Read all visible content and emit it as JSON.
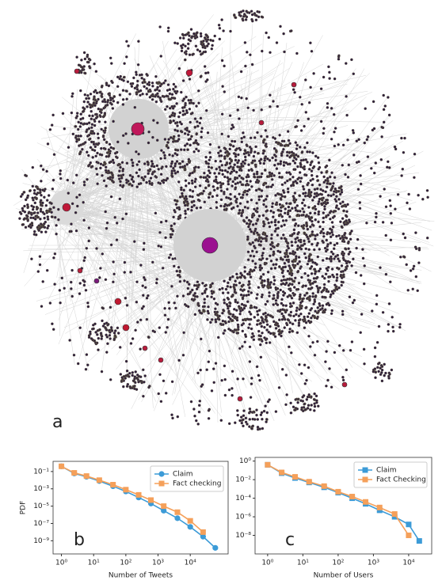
{
  "network": {
    "label": "a"
  },
  "chart_data": [
    {
      "type": "line",
      "label": "b",
      "x_label": "Number of Tweets",
      "y_label": "PDF",
      "log_x": true,
      "log_y": true,
      "grid": false,
      "legend": "upper right",
      "xlim": [
        0.55,
        150000
      ],
      "ylim": [
        3e-11,
        1.5
      ],
      "xticks": [
        {
          "value": 1,
          "label": "10⁰"
        },
        {
          "value": 10,
          "label": "10¹"
        },
        {
          "value": 100,
          "label": "10²"
        },
        {
          "value": 1000,
          "label": "10³"
        },
        {
          "value": 10000,
          "label": "10⁴"
        }
      ],
      "yticks": [
        {
          "value": 0.1,
          "label": "10⁻¹"
        },
        {
          "value": 0.001,
          "label": "10⁻³"
        },
        {
          "value": 1e-05,
          "label": "10⁻⁵"
        },
        {
          "value": 1e-07,
          "label": "10⁻⁷"
        },
        {
          "value": 1e-09,
          "label": "10⁻⁹"
        }
      ],
      "series": [
        {
          "name": "Claim",
          "color": "#3c9bd7",
          "marker": "circle",
          "x": [
            1,
            2.5,
            6,
            15,
            40,
            100,
            250,
            600,
            1500,
            4000,
            10000,
            25000,
            60000
          ],
          "values": [
            0.4,
            0.06,
            0.025,
            0.008,
            0.002,
            0.0005,
            0.0001,
            2e-05,
            3e-06,
            4e-07,
            4e-08,
            3e-09,
            1.5e-10
          ]
        },
        {
          "name": "Fact checking",
          "color": "#f5a05a",
          "marker": "square",
          "x": [
            1,
            2.5,
            6,
            15,
            40,
            100,
            250,
            600,
            1500,
            4000,
            10000,
            25000
          ],
          "values": [
            0.4,
            0.07,
            0.03,
            0.01,
            0.003,
            0.0008,
            0.0002,
            5e-05,
            1e-05,
            2e-06,
            2e-07,
            1e-08
          ]
        }
      ]
    },
    {
      "type": "line",
      "label": "c",
      "x_label": "Number of Users",
      "log_x": true,
      "log_y": true,
      "grid": false,
      "legend": "upper right",
      "xlim": [
        0.44,
        45000
      ],
      "ylim": [
        1e-10,
        2.5
      ],
      "xticks": [
        {
          "value": 1,
          "label": "10⁰"
        },
        {
          "value": 10,
          "label": "10¹"
        },
        {
          "value": 100,
          "label": "10²"
        },
        {
          "value": 1000,
          "label": "10³"
        },
        {
          "value": 10000,
          "label": "10⁴"
        }
      ],
      "yticks": [
        {
          "value": 1,
          "label": "10⁰"
        },
        {
          "value": 0.01,
          "label": "10⁻²"
        },
        {
          "value": 0.0001,
          "label": "10⁻⁴"
        },
        {
          "value": 1e-06,
          "label": "10⁻⁶"
        },
        {
          "value": 1e-08,
          "label": "10⁻⁸"
        }
      ],
      "series": [
        {
          "name": "Claim",
          "color": "#3c9bd7",
          "marker": "square",
          "x": [
            1,
            2.5,
            6,
            15,
            40,
            100,
            250,
            600,
            1500,
            4000,
            10000,
            20000
          ],
          "values": [
            0.4,
            0.05,
            0.015,
            0.005,
            0.0015,
            0.0004,
            0.0001,
            2.5e-05,
            5e-06,
            1e-06,
            1.5e-07,
            2.5e-09
          ]
        },
        {
          "name": "Fact Checking",
          "color": "#f5a05a",
          "marker": "square",
          "x": [
            1,
            2.5,
            6,
            15,
            40,
            100,
            250,
            600,
            1500,
            4000,
            10000
          ],
          "values": [
            0.4,
            0.06,
            0.02,
            0.006,
            0.002,
            0.0005,
            0.00015,
            4e-05,
            1e-05,
            2e-06,
            1e-08
          ]
        }
      ]
    }
  ]
}
